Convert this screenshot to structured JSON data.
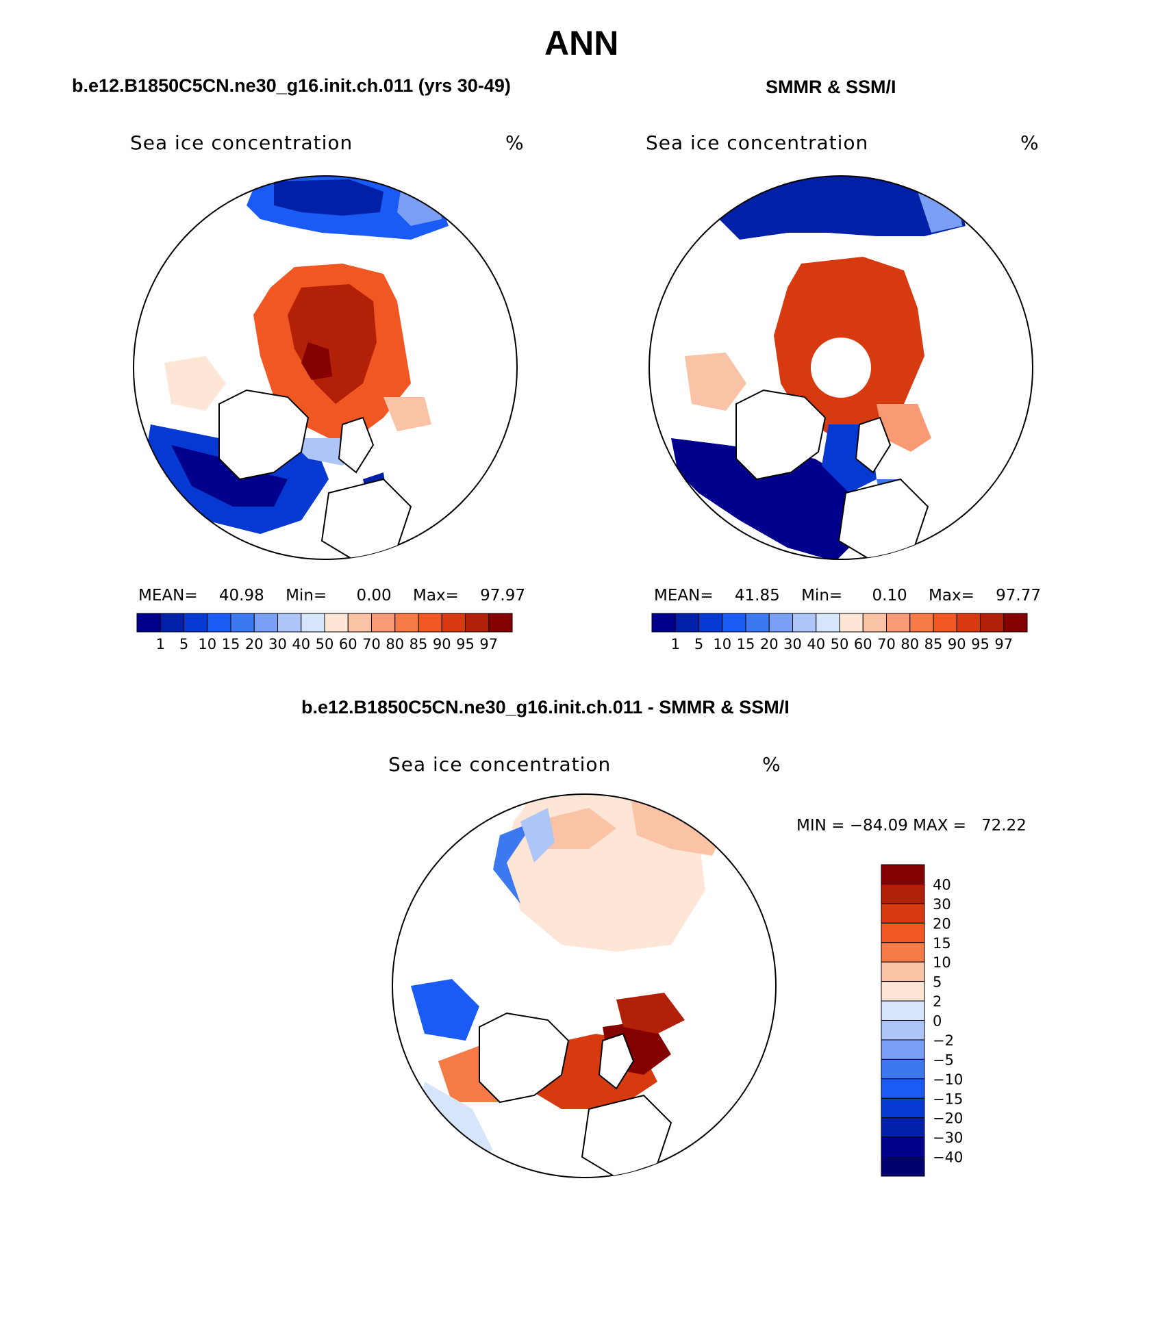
{
  "title": "ANN",
  "panels": {
    "model": {
      "title": "b.e12.B1850C5CN.ne30_g16.init.ch.011 (yrs 30-49)",
      "variable": "Sea ice concentration",
      "units": "%",
      "mean_label": "MEAN=",
      "mean": "40.98",
      "min_label": "Min=",
      "min": "0.00",
      "max_label": "Max=",
      "max": "97.97"
    },
    "obs": {
      "title": "SMMR & SSM/I",
      "variable": "Sea ice concentration",
      "units": "%",
      "mean_label": "MEAN=",
      "mean": "41.85",
      "min_label": "Min=",
      "min": "0.10",
      "max_label": "Max=",
      "max": "97.77"
    },
    "diff": {
      "title": "b.e12.B1850C5CN.ne30_g16.init.ch.011 - SMMR & SSM/I",
      "variable": "Sea ice concentration",
      "units": "%",
      "minmax": "MIN = −84.09 MAX =   72.22"
    }
  },
  "colorbar_levels": [
    "1",
    "5",
    "10",
    "15",
    "20",
    "30",
    "40",
    "50",
    "60",
    "70",
    "80",
    "85",
    "90",
    "95",
    "97"
  ],
  "colorbar_colors": [
    "#00008c",
    "#0020a8",
    "#0539d2",
    "#1a5bf5",
    "#3c78f0",
    "#7a9ff5",
    "#aec6f7",
    "#d6e6fa",
    "#fde6d6",
    "#fbc3a5",
    "#f89a74",
    "#f57a45",
    "#f05722",
    "#d83a10",
    "#b22008",
    "#850000"
  ],
  "diff_levels": [
    "40",
    "30",
    "20",
    "15",
    "10",
    "5",
    "2",
    "0",
    "−2",
    "−5",
    "−10",
    "−15",
    "−20",
    "−30",
    "−40"
  ],
  "diff_colors": [
    "#850000",
    "#b22008",
    "#d83a10",
    "#f05722",
    "#f57a45",
    "#fbc3a5",
    "#fde6d6",
    "#d6e6fa",
    "#aec6f7",
    "#7a9ff5",
    "#3c78f0",
    "#1a5bf5",
    "#0539d2",
    "#0020a8",
    "#00008c",
    "#00006e"
  ],
  "colors": {
    "land": "#ffffff",
    "coast": "#000000"
  }
}
